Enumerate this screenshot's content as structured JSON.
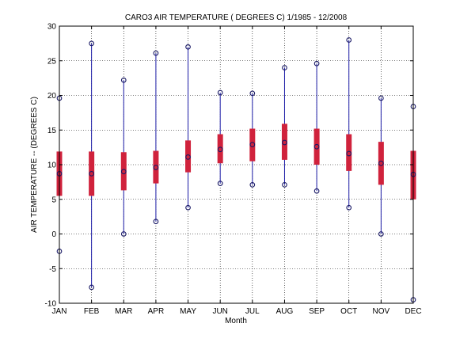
{
  "chart_data": {
    "type": "boxplot",
    "title": "CARO3  AIR TEMPERATURE ( DEGREES C) 1/1985 - 12/2008",
    "xlabel": "Month",
    "ylabel": "AIR TEMPERATURE -- (DEGREES C)",
    "ylim": [
      -10,
      30
    ],
    "yticks": [
      -10,
      -5,
      0,
      5,
      10,
      15,
      20,
      25,
      30
    ],
    "grid": true,
    "categories": [
      "JAN",
      "FEB",
      "MAR",
      "APR",
      "MAY",
      "JUN",
      "JUL",
      "AUG",
      "SEP",
      "OCT",
      "NOV",
      "DEC"
    ],
    "series": [
      {
        "min": [
          -2.5,
          -7.7,
          0.0,
          1.8,
          3.8,
          7.3,
          7.1,
          7.1,
          6.2,
          3.8,
          0.0,
          -9.5
        ],
        "q1": [
          5.5,
          5.5,
          6.3,
          7.3,
          8.9,
          10.2,
          10.5,
          10.7,
          10.0,
          9.1,
          7.1,
          5.0
        ],
        "median": [
          8.7,
          8.7,
          9.0,
          9.6,
          11.1,
          12.2,
          12.9,
          13.2,
          12.6,
          11.6,
          10.2,
          8.6
        ],
        "q3": [
          11.9,
          11.9,
          11.8,
          12.0,
          13.5,
          14.4,
          15.2,
          15.9,
          15.2,
          14.4,
          13.3,
          12.0
        ],
        "max": [
          19.6,
          27.5,
          22.2,
          26.1,
          27.0,
          20.4,
          20.3,
          24.0,
          24.6,
          28.0,
          19.6,
          18.4
        ]
      }
    ],
    "colors": {
      "whisker": "#1a1aa6",
      "box": "#d0223c",
      "marker": "#1a1a66",
      "grid": "#000000"
    }
  }
}
